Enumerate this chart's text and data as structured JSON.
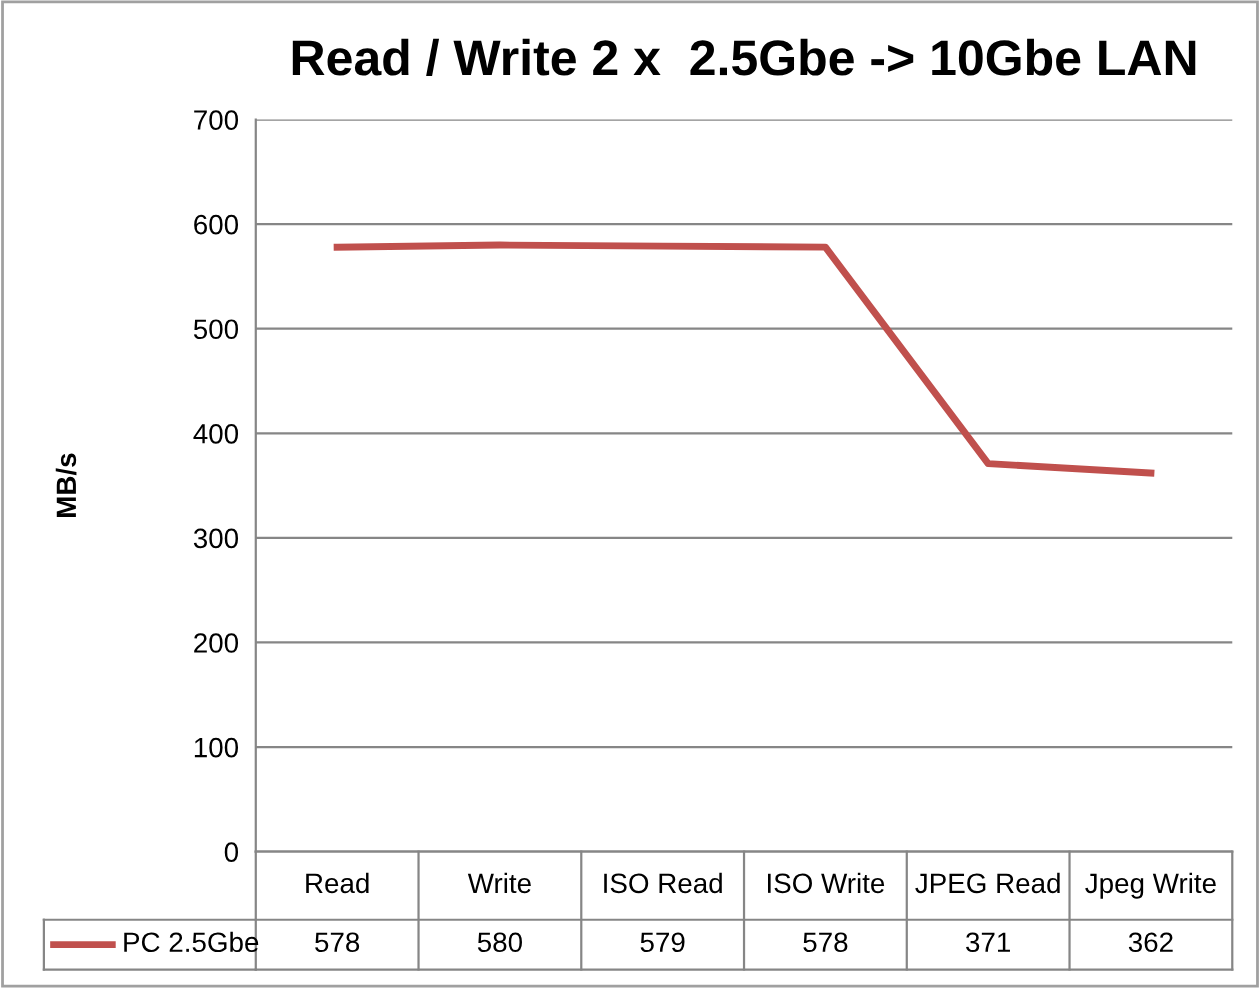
{
  "chart_data": {
    "type": "line",
    "title": "Read / Write 2 x  2.5Gbe -> 10Gbe LAN",
    "ylabel": "MB/s",
    "categories": [
      "Read",
      "Write",
      "ISO Read",
      "ISO Write",
      "JPEG Read",
      "Jpeg Write"
    ],
    "series": [
      {
        "name": "PC 2.5Gbe",
        "color": "#c0504d",
        "values": [
          578,
          580,
          579,
          578,
          371,
          362
        ]
      }
    ],
    "ylim": [
      0,
      700
    ],
    "yticks": [
      0,
      100,
      200,
      300,
      400,
      500,
      600,
      700
    ],
    "grid": "y",
    "data_labels": true,
    "legend": "bottom",
    "marker": "none"
  }
}
